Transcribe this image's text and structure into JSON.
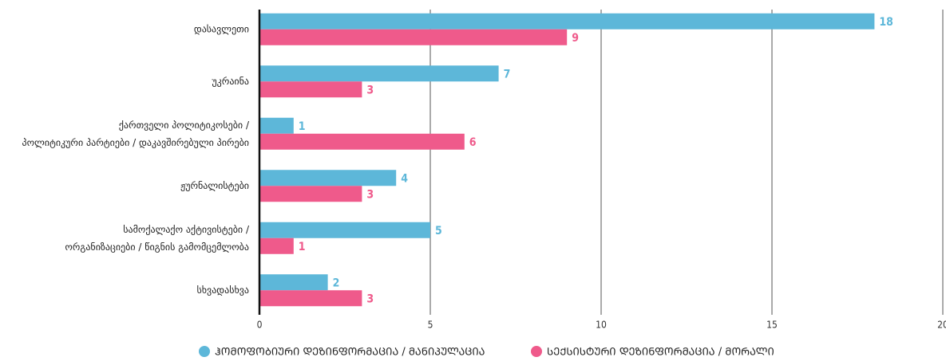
{
  "chart_data": {
    "type": "hbar",
    "categories": [
      "დასავლეთი",
      "უკრაინა",
      [
        "ქართველი პოლიტიკოსები /",
        "პოლიტიკური პარტიები / დაკავშირებული პირები"
      ],
      "ჟურნალისტები",
      [
        "სამოქალაქო აქტივისტები /",
        "ორგანიზაციები / წიგნის გამომცემლობა"
      ],
      "სხვადასხვა"
    ],
    "series": [
      {
        "name": "ᲰᲝᲛᲝᲤᲝᲑᲘᲣᲠᲘ ᲓᲔᲖᲘᲜᲤᲝᲠᲛᲐᲪᲘᲐ / ᲛᲐᲜᲘᲞᲣᲚᲐᲪᲘᲐ",
        "color": "#5db7d9",
        "values": [
          18,
          7,
          1,
          4,
          5,
          2
        ]
      },
      {
        "name": "ᲡᲔᲥᲡᲘᲡᲢᲣᲠᲘ ᲓᲔᲖᲘᲜᲤᲝᲠᲛᲐᲪᲘᲐ / ᲛᲝᲠᲐᲚᲘ",
        "color": "#ef5a8b",
        "values": [
          9,
          3,
          6,
          3,
          1,
          3
        ]
      }
    ],
    "xlim": [
      0,
      20
    ],
    "xticks": [
      0,
      5,
      10,
      15,
      20
    ],
    "grid": true,
    "legend": "bottom"
  }
}
